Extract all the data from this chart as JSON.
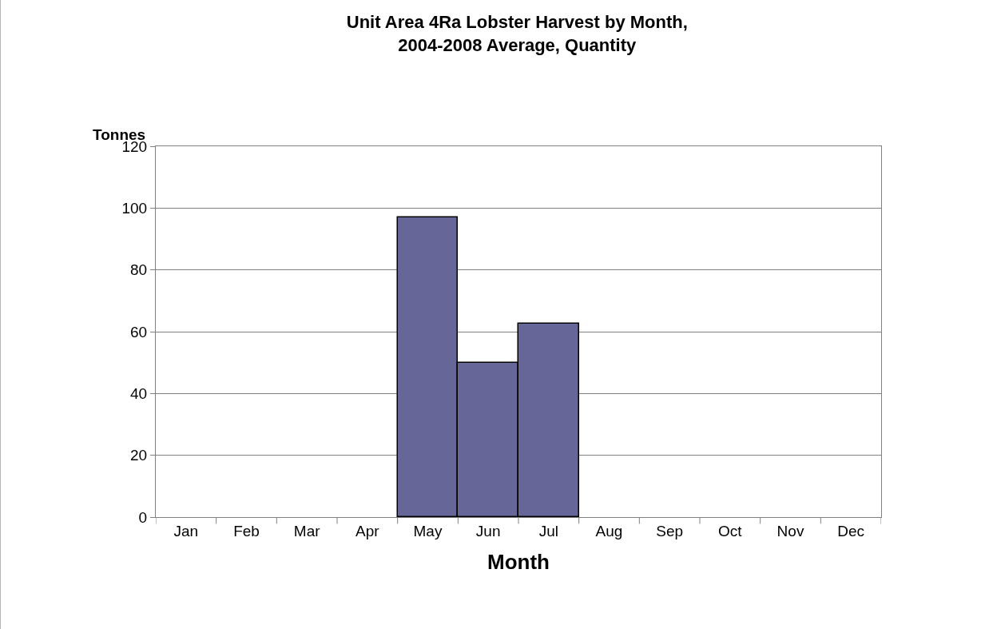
{
  "chart_data": {
    "type": "bar",
    "title": "Unit Area 4Ra Lobster Harvest by Month,\n2004-2008 Average, Quantity",
    "xlabel": "Month",
    "ylabel": "Tonnes",
    "categories": [
      "Jan",
      "Feb",
      "Mar",
      "Apr",
      "May",
      "Jun",
      "Jul",
      "Aug",
      "Sep",
      "Oct",
      "Nov",
      "Dec"
    ],
    "values": [
      null,
      null,
      null,
      null,
      97,
      50,
      62.5,
      null,
      null,
      null,
      null,
      null
    ],
    "color": "#666699",
    "ylim": [
      0,
      120
    ],
    "yticks": [
      0,
      20,
      40,
      60,
      80,
      100,
      120
    ],
    "grid": "y",
    "legend": false
  }
}
